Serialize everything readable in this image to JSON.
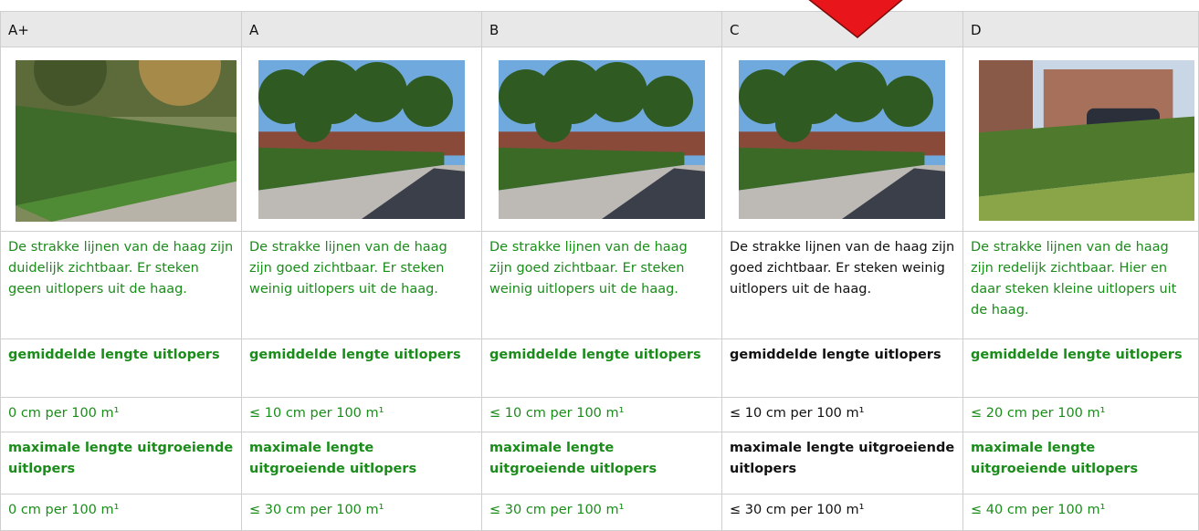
{
  "columns": [
    {
      "grade": "A+",
      "color": "#1a8c1a",
      "description": "De strakke lijnen van de haag zijn duidelijk zichtbaar. Er steken geen uitlopers uit de haag.",
      "avg_label": "gemiddelde lengte uitlopers",
      "avg_value": "0 cm per 100 m¹",
      "max_label": "maximale lengte uitgroeiende uitlopers",
      "max_value": "0 cm per 100 m¹"
    },
    {
      "grade": "A",
      "color": "#1a8c1a",
      "description": "De strakke lijnen van de haag zijn goed zichtbaar. Er steken weinig uitlopers uit de haag.",
      "avg_label": "gemiddelde lengte uitlopers",
      "avg_value": "≤ 10 cm per 100 m¹",
      "max_label": "maximale lengte uitgroeiende uitlopers",
      "max_value": "≤ 30 cm per 100 m¹"
    },
    {
      "grade": "B",
      "color": "#1a8c1a",
      "description": "De strakke lijnen van de haag zijn goed zichtbaar. Er steken weinig uitlopers uit de haag.",
      "avg_label": "gemiddelde lengte uitlopers",
      "avg_value": "≤ 10 cm per 100 m¹",
      "max_label": "maximale lengte uitgroeiende uitlopers",
      "max_value": "≤ 30 cm per 100 m¹"
    },
    {
      "grade": "C",
      "color": "#111111",
      "description": "De strakke lijnen van de haag zijn goed zichtbaar. Er steken weinig uitlopers uit de haag.",
      "avg_label": "gemiddelde lengte uitlopers",
      "avg_value": "≤ 10 cm per 100 m¹",
      "max_label": "maximale lengte uitgroeiende uitlopers",
      "max_value": "≤ 30 cm per 100 m¹"
    },
    {
      "grade": "D",
      "color": "#1a8c1a",
      "description": "De strakke lijnen van de haag zijn redelijk zichtbaar. Hier en daar steken kleine uitlopers uit de haag.",
      "avg_label": "gemiddelde lengte uitlopers",
      "avg_value": "≤ 20 cm per 100 m¹",
      "max_label": "maximale lengte uitgroeiende uitlopers",
      "max_value": "≤ 40 cm per 100 m¹"
    }
  ]
}
